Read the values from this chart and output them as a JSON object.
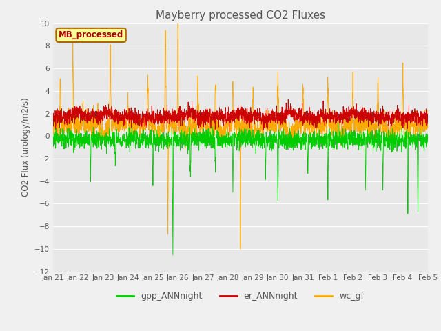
{
  "title": "Mayberry processed CO2 Fluxes",
  "ylabel": "CO2 Flux (urology/m2/s)",
  "ylim": [
    -12,
    10
  ],
  "yticks": [
    -12,
    -10,
    -8,
    -6,
    -4,
    -2,
    0,
    2,
    4,
    6,
    8,
    10
  ],
  "background_color": "#f0f0f0",
  "plot_bg_color": "#e8e8e8",
  "grid_color": "#ffffff",
  "legend_box_label": "MB_processed",
  "legend_box_facecolor": "#ffff99",
  "legend_box_edgecolor": "#aa6600",
  "legend_box_textcolor": "#aa0000",
  "line_colors": {
    "gpp_ANNnight": "#00cc00",
    "er_ANNnight": "#cc0000",
    "wc_gf": "#ffaa00"
  },
  "line_width": 0.6,
  "n_points": 2880,
  "tick_labels": [
    "Jan 21",
    "Jan 22",
    "Jan 23",
    "Jan 24",
    "Jan 25",
    "Jan 26",
    "Jan 27",
    "Jan 28",
    "Jan 29",
    "Jan 30",
    "Jan 31",
    "Feb 1",
    "Feb 2",
    "Feb 3",
    "Feb 4",
    "Feb 5"
  ],
  "legend_entries": [
    "gpp_ANNnight",
    "er_ANNnight",
    "wc_gf"
  ],
  "figsize": [
    6.4,
    4.8
  ],
  "dpi": 100
}
